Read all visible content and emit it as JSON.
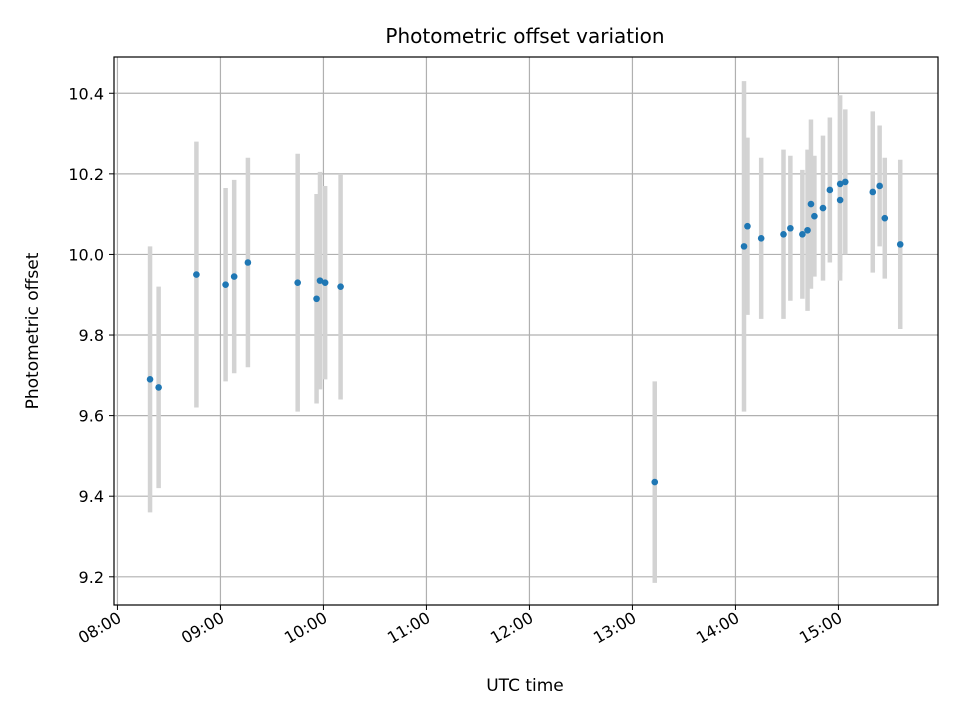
{
  "chart_data": {
    "type": "scatter",
    "title": "Photometric offset variation",
    "xlabel": "UTC time",
    "ylabel": "Photometric offset",
    "x_ticks": [
      "08:00",
      "09:00",
      "10:00",
      "11:00",
      "12:00",
      "13:00",
      "14:00",
      "15:00"
    ],
    "y_ticks": [
      "9.2",
      "9.4",
      "9.6",
      "9.8",
      "10.0",
      "10.2",
      "10.4"
    ],
    "xlim": [
      "07:58",
      "15:58"
    ],
    "ylim": [
      9.13,
      10.49
    ],
    "grid": true,
    "marker_color": "#1f77b4",
    "errorbar_color": "#d3d3d3",
    "series": [
      {
        "points": [
          {
            "x": "08:19",
            "y": 9.69,
            "err": 0.33
          },
          {
            "x": "08:24",
            "y": 9.67,
            "err": 0.25
          },
          {
            "x": "08:46",
            "y": 9.95,
            "err": 0.33
          },
          {
            "x": "09:03",
            "y": 9.925,
            "err": 0.24
          },
          {
            "x": "09:08",
            "y": 9.945,
            "err": 0.24
          },
          {
            "x": "09:16",
            "y": 9.98,
            "err": 0.26
          },
          {
            "x": "09:45",
            "y": 9.93,
            "err": 0.32
          },
          {
            "x": "09:56",
            "y": 9.89,
            "err": 0.26
          },
          {
            "x": "09:58",
            "y": 9.935,
            "err": 0.27
          },
          {
            "x": "10:01",
            "y": 9.93,
            "err": 0.24
          },
          {
            "x": "10:10",
            "y": 9.92,
            "err": 0.28
          },
          {
            "x": "13:13",
            "y": 9.435,
            "err": 0.25
          },
          {
            "x": "14:05",
            "y": 10.02,
            "err": 0.41
          },
          {
            "x": "14:07",
            "y": 10.07,
            "err": 0.22
          },
          {
            "x": "14:15",
            "y": 10.04,
            "err": 0.2
          },
          {
            "x": "14:28",
            "y": 10.05,
            "err": 0.21
          },
          {
            "x": "14:32",
            "y": 10.065,
            "err": 0.18
          },
          {
            "x": "14:39",
            "y": 10.05,
            "err": 0.16
          },
          {
            "x": "14:42",
            "y": 10.06,
            "err": 0.2
          },
          {
            "x": "14:44",
            "y": 10.125,
            "err": 0.21
          },
          {
            "x": "14:46",
            "y": 10.095,
            "err": 0.15
          },
          {
            "x": "14:51",
            "y": 10.115,
            "err": 0.18
          },
          {
            "x": "14:55",
            "y": 10.16,
            "err": 0.18
          },
          {
            "x": "15:01",
            "y": 10.135,
            "err": 0.2
          },
          {
            "x": "15:01",
            "y": 10.175,
            "err": 0.22
          },
          {
            "x": "15:04",
            "y": 10.18,
            "err": 0.18
          },
          {
            "x": "15:20",
            "y": 10.155,
            "err": 0.2
          },
          {
            "x": "15:24",
            "y": 10.17,
            "err": 0.15
          },
          {
            "x": "15:27",
            "y": 10.09,
            "err": 0.15
          },
          {
            "x": "15:36",
            "y": 10.025,
            "err": 0.21
          }
        ]
      }
    ]
  }
}
